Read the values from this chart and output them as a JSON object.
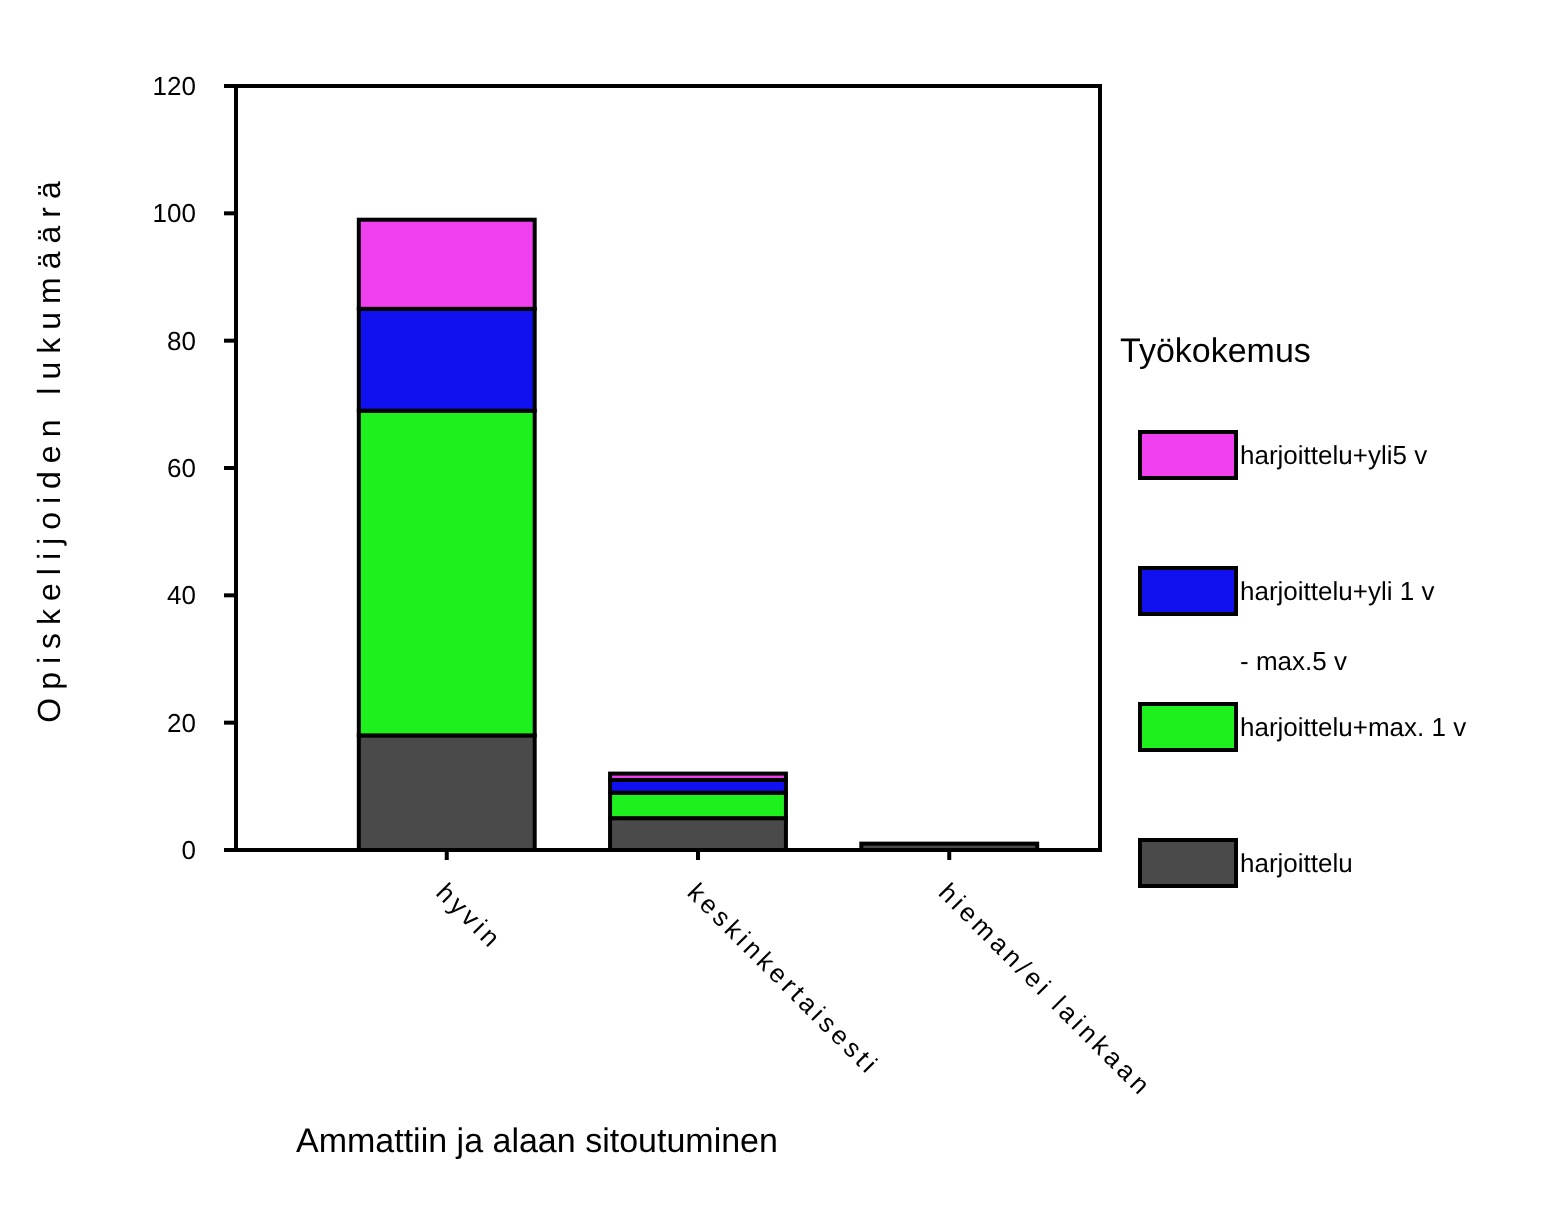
{
  "chart_data": {
    "type": "bar",
    "stacked": true,
    "xlabel": "Ammattiin ja alaan sitoutuminen",
    "ylabel": "Opiskelijoiden lukumäärä",
    "legend_title": "Työkokemus",
    "legend": "right",
    "categories": [
      "hyvin",
      "keskinkertaisesti",
      "hieman/ei lainkaan"
    ],
    "series": [
      {
        "name": "harjoittelu",
        "color": "#4a4a4a",
        "values": [
          18,
          5,
          1
        ]
      },
      {
        "name": "harjoittelu+max. 1 v",
        "color": "#1ef01e",
        "values": [
          51,
          4,
          0
        ]
      },
      {
        "name": "harjoittelu+yli 1 v - max.5 v",
        "color": "#1010f0",
        "values": [
          16,
          2,
          0
        ]
      },
      {
        "name": "harjoittelu+yli5 v",
        "color": "#f040f0",
        "values": [
          14,
          1,
          0
        ]
      }
    ],
    "ylim": [
      0,
      120
    ],
    "yticks": [
      0,
      20,
      40,
      60,
      80,
      100,
      120
    ],
    "grid": false
  }
}
